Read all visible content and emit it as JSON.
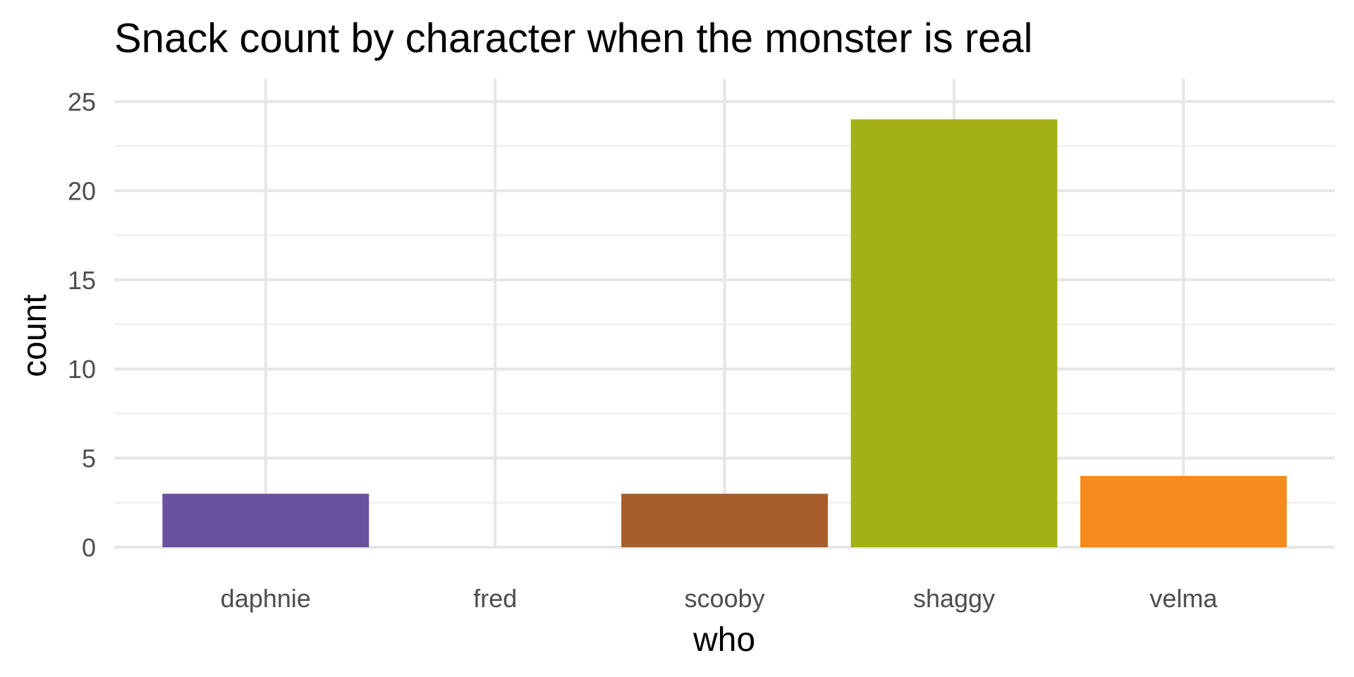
{
  "chart_data": {
    "type": "bar",
    "title": "Snack count by character when the monster is real",
    "xlabel": "who",
    "ylabel": "count",
    "categories": [
      "daphnie",
      "fred",
      "scooby",
      "shaggy",
      "velma"
    ],
    "values": [
      3,
      0,
      3,
      24,
      4
    ],
    "colors": [
      "#6a51a0",
      "#6a51a0",
      "#a65e2a",
      "#a3b118",
      "#f58a1f"
    ],
    "ylim": [
      0,
      25
    ],
    "y_ticks": [
      0,
      5,
      10,
      15,
      20,
      25
    ],
    "y_tick_labels": [
      "0",
      "5",
      "10",
      "15",
      "20",
      "25"
    ],
    "grid": true,
    "legend": "none"
  }
}
